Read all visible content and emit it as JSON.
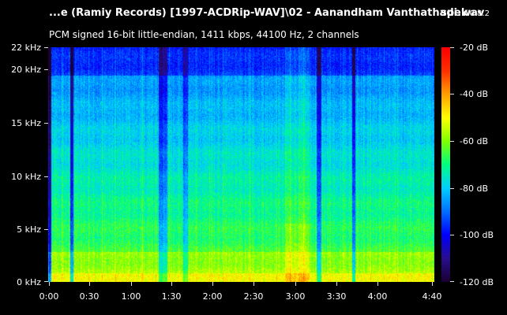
{
  "header": {
    "title": "...e (Ramiy Records) [1997-ACDRip-WAV]\\02 - Aanandham Vanthathadi.wav",
    "app_name": "spek",
    "app_version": "0.8.2",
    "info": "PCM signed 16-bit little-endian, 1411 kbps, 44100 Hz, 2 channels"
  },
  "axes": {
    "frequency_labels": [
      "22 kHz",
      "20 kHz",
      "15 kHz",
      "10 kHz",
      "5 kHz",
      "0 kHz"
    ],
    "time_labels": [
      "0:00",
      "0:30",
      "1:00",
      "1:30",
      "2:00",
      "2:30",
      "3:00",
      "3:30",
      "4:00",
      "4:40"
    ],
    "db_labels": [
      "-20 dB",
      "-40 dB",
      "-60 dB",
      "-80 dB",
      "-100 dB",
      "-120 dB"
    ]
  },
  "colors": {
    "background": "#000000",
    "colormap": [
      "#1a0033",
      "#2a0f8f",
      "#0000ff",
      "#0070ff",
      "#00d0ff",
      "#00ff80",
      "#80ff00",
      "#ffff00",
      "#ffa000",
      "#ff3000",
      "#ff0000"
    ]
  }
}
